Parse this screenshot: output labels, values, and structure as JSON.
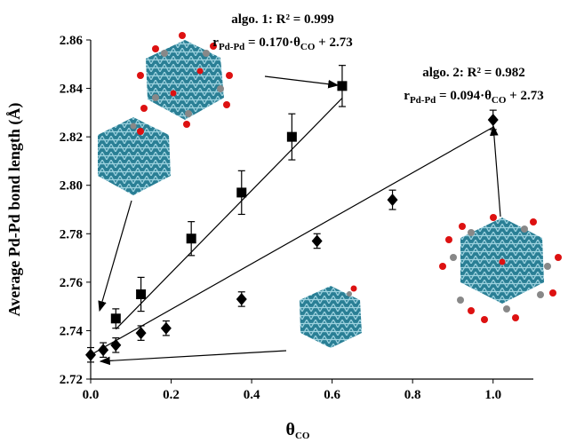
{
  "chart_data": {
    "type": "scatter",
    "annotations": [
      {
        "line1": "algo. 1: R² = 0.999",
        "line2": [
          "r",
          "Pd-Pd",
          " = 0.170·θ",
          "CO",
          " + 2.73"
        ]
      },
      {
        "line1": "algo. 2: R² = 0.982",
        "line2": [
          "r",
          "Pd-Pd",
          " = 0.094·θ",
          "CO",
          " + 2.73"
        ]
      }
    ],
    "x_label": [
      "θ",
      "CO"
    ],
    "y_label": "Average Pd-Pd bond length (Å)",
    "xlim": [
      0,
      1.1
    ],
    "xticks": [
      {
        "value": 0,
        "label": "0.0"
      },
      0.2,
      0.4,
      0.6,
      0.8,
      {
        "value": 1,
        "label": "1.0"
      }
    ],
    "ylim": [
      2.72,
      2.86
    ],
    "yticks": [
      2.72,
      2.74,
      2.76,
      2.78,
      {
        "value": 2.8,
        "label": "2.80"
      },
      2.82,
      2.84,
      2.86
    ],
    "series": [
      {
        "marker": "square",
        "color": "#000000",
        "x": [
          0.0625,
          0.125,
          0.25,
          0.375,
          0.5,
          0.625
        ],
        "values": [
          2.745,
          2.755,
          2.778,
          2.797,
          2.82,
          2.841
        ],
        "errors": [
          0.004,
          0.007,
          0.007,
          0.009,
          0.0095,
          0.0085
        ],
        "fit": {
          "x": [
            0.0625,
            0.625
          ],
          "values": [
            2.7406,
            2.836
          ]
        }
      },
      {
        "marker": "diamond",
        "color": "#000000",
        "x": [
          0,
          0.03125,
          0.0625,
          0.125,
          0.1875,
          0.375,
          0.5625,
          0.75,
          1
        ],
        "values": [
          2.73,
          2.732,
          2.734,
          2.739,
          2.741,
          2.753,
          2.777,
          2.794,
          2.827
        ],
        "errors": [
          0.003,
          0.003,
          0.003,
          0.003,
          0.003,
          0.003,
          0.003,
          0.004,
          0.004
        ],
        "fit": {
          "x": [
            0,
            1
          ],
          "values": [
            2.73,
            2.824
          ]
        }
      }
    ]
  }
}
